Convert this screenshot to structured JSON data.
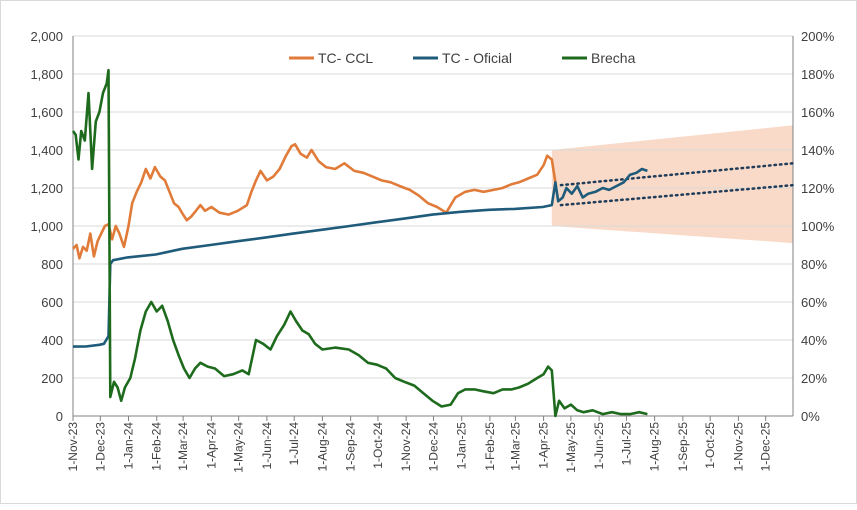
{
  "chart_data": {
    "type": "line",
    "title": "",
    "xlabel": "",
    "ylabel": "",
    "y_left_ticks": [
      "0",
      "200",
      "400",
      "600",
      "800",
      "1,000",
      "1,200",
      "1,400",
      "1,600",
      "1,800",
      "2,000"
    ],
    "y_right_ticks": [
      "0%",
      "20%",
      "40%",
      "60%",
      "80%",
      "100%",
      "120%",
      "140%",
      "160%",
      "180%",
      "200%"
    ],
    "ylim_left": [
      0,
      2000
    ],
    "ylim_right": [
      0,
      200
    ],
    "x_ticks": [
      "1-Nov-23",
      "1-Dec-23",
      "1-Jan-24",
      "1-Feb-24",
      "1-Mar-24",
      "1-Apr-24",
      "1-May-24",
      "1-Jun-24",
      "1-Jul-24",
      "1-Aug-24",
      "1-Sep-24",
      "1-Oct-24",
      "1-Nov-24",
      "1-Dec-24",
      "1-Jan-25",
      "1-Feb-25",
      "1-Mar-25",
      "1-Apr-25",
      "1-May-25",
      "1-Jun-25",
      "1-Jul-25",
      "1-Aug-25",
      "1-Sep-25",
      "1-Oct-25",
      "1-Nov-25",
      "1-Dec-25"
    ],
    "grid": "horizontal",
    "legend_position": "top-center",
    "colors": {
      "ccl": "#e07b39",
      "oficial": "#1f5b7a",
      "brecha": "#1e6b1e",
      "band": "#f8d3be",
      "trend": "#1f3d5a"
    },
    "series": [
      {
        "name": "TC- CCL",
        "axis": "left",
        "points": [
          [
            "2023-11-01",
            880
          ],
          [
            "2023-11-05",
            900
          ],
          [
            "2023-11-08",
            830
          ],
          [
            "2023-11-12",
            890
          ],
          [
            "2023-11-16",
            870
          ],
          [
            "2023-11-20",
            960
          ],
          [
            "2023-11-24",
            840
          ],
          [
            "2023-11-28",
            920
          ],
          [
            "2023-12-02",
            960
          ],
          [
            "2023-12-06",
            1000
          ],
          [
            "2023-12-10",
            1010
          ],
          [
            "2023-12-14",
            930
          ],
          [
            "2023-12-18",
            1000
          ],
          [
            "2023-12-22",
            960
          ],
          [
            "2023-12-27",
            890
          ],
          [
            "2024-01-01",
            1000
          ],
          [
            "2024-01-05",
            1120
          ],
          [
            "2024-01-10",
            1180
          ],
          [
            "2024-01-15",
            1230
          ],
          [
            "2024-01-20",
            1300
          ],
          [
            "2024-01-25",
            1250
          ],
          [
            "2024-01-30",
            1310
          ],
          [
            "2024-02-05",
            1260
          ],
          [
            "2024-02-10",
            1240
          ],
          [
            "2024-02-15",
            1180
          ],
          [
            "2024-02-20",
            1120
          ],
          [
            "2024-02-25",
            1100
          ],
          [
            "2024-03-01",
            1060
          ],
          [
            "2024-03-05",
            1030
          ],
          [
            "2024-03-10",
            1050
          ],
          [
            "2024-03-15",
            1080
          ],
          [
            "2024-03-20",
            1110
          ],
          [
            "2024-03-25",
            1080
          ],
          [
            "2024-04-01",
            1100
          ],
          [
            "2024-04-10",
            1070
          ],
          [
            "2024-04-20",
            1060
          ],
          [
            "2024-04-30",
            1080
          ],
          [
            "2024-05-10",
            1110
          ],
          [
            "2024-05-15",
            1180
          ],
          [
            "2024-05-20",
            1240
          ],
          [
            "2024-05-25",
            1290
          ],
          [
            "2024-06-01",
            1240
          ],
          [
            "2024-06-08",
            1260
          ],
          [
            "2024-06-15",
            1300
          ],
          [
            "2024-06-22",
            1370
          ],
          [
            "2024-06-28",
            1420
          ],
          [
            "2024-07-02",
            1430
          ],
          [
            "2024-07-08",
            1380
          ],
          [
            "2024-07-15",
            1360
          ],
          [
            "2024-07-20",
            1400
          ],
          [
            "2024-07-28",
            1340
          ],
          [
            "2024-08-05",
            1310
          ],
          [
            "2024-08-15",
            1300
          ],
          [
            "2024-08-25",
            1330
          ],
          [
            "2024-09-05",
            1290
          ],
          [
            "2024-09-15",
            1280
          ],
          [
            "2024-09-25",
            1260
          ],
          [
            "2024-10-05",
            1240
          ],
          [
            "2024-10-15",
            1230
          ],
          [
            "2024-10-25",
            1210
          ],
          [
            "2024-11-05",
            1190
          ],
          [
            "2024-11-15",
            1160
          ],
          [
            "2024-11-25",
            1120
          ],
          [
            "2024-12-05",
            1100
          ],
          [
            "2024-12-15",
            1070
          ],
          [
            "2024-12-25",
            1150
          ],
          [
            "2025-01-05",
            1180
          ],
          [
            "2025-01-15",
            1190
          ],
          [
            "2025-01-25",
            1180
          ],
          [
            "2025-02-05",
            1190
          ],
          [
            "2025-02-15",
            1200
          ],
          [
            "2025-02-25",
            1220
          ],
          [
            "2025-03-05",
            1230
          ],
          [
            "2025-03-15",
            1250
          ],
          [
            "2025-03-25",
            1270
          ],
          [
            "2025-04-01",
            1320
          ],
          [
            "2025-04-05",
            1370
          ],
          [
            "2025-04-10",
            1350
          ],
          [
            "2025-04-14",
            1230
          ]
        ]
      },
      {
        "name": "TC - Oficial",
        "axis": "left",
        "points": [
          [
            "2023-11-01",
            365
          ],
          [
            "2023-11-15",
            366
          ],
          [
            "2023-11-30",
            375
          ],
          [
            "2023-12-05",
            380
          ],
          [
            "2023-12-10",
            420
          ],
          [
            "2023-12-12",
            800
          ],
          [
            "2023-12-15",
            820
          ],
          [
            "2023-12-31",
            835
          ],
          [
            "2024-01-31",
            850
          ],
          [
            "2024-02-29",
            880
          ],
          [
            "2024-03-31",
            900
          ],
          [
            "2024-04-30",
            920
          ],
          [
            "2024-05-31",
            940
          ],
          [
            "2024-06-30",
            960
          ],
          [
            "2024-07-31",
            980
          ],
          [
            "2024-08-31",
            1000
          ],
          [
            "2024-09-30",
            1020
          ],
          [
            "2024-10-31",
            1040
          ],
          [
            "2024-11-30",
            1060
          ],
          [
            "2024-12-31",
            1075
          ],
          [
            "2025-01-31",
            1085
          ],
          [
            "2025-02-28",
            1090
          ],
          [
            "2025-03-31",
            1100
          ],
          [
            "2025-04-10",
            1110
          ],
          [
            "2025-04-14",
            1230
          ],
          [
            "2025-04-17",
            1130
          ],
          [
            "2025-04-22",
            1150
          ],
          [
            "2025-04-26",
            1200
          ],
          [
            "2025-05-02",
            1170
          ],
          [
            "2025-05-08",
            1210
          ],
          [
            "2025-05-14",
            1150
          ],
          [
            "2025-05-20",
            1170
          ],
          [
            "2025-05-28",
            1180
          ],
          [
            "2025-06-05",
            1200
          ],
          [
            "2025-06-12",
            1190
          ],
          [
            "2025-06-20",
            1210
          ],
          [
            "2025-06-28",
            1230
          ],
          [
            "2025-07-05",
            1270
          ],
          [
            "2025-07-12",
            1280
          ],
          [
            "2025-07-18",
            1300
          ],
          [
            "2025-07-24",
            1290
          ]
        ]
      },
      {
        "name": "Brecha",
        "axis": "right",
        "points": [
          [
            "2023-11-01",
            150
          ],
          [
            "2023-11-04",
            148
          ],
          [
            "2023-11-07",
            135
          ],
          [
            "2023-11-10",
            150
          ],
          [
            "2023-11-14",
            145
          ],
          [
            "2023-11-18",
            170
          ],
          [
            "2023-11-22",
            130
          ],
          [
            "2023-11-26",
            155
          ],
          [
            "2023-11-30",
            160
          ],
          [
            "2023-12-04",
            170
          ],
          [
            "2023-12-08",
            175
          ],
          [
            "2023-12-10",
            182
          ],
          [
            "2023-12-12",
            10
          ],
          [
            "2023-12-16",
            18
          ],
          [
            "2023-12-20",
            15
          ],
          [
            "2023-12-24",
            8
          ],
          [
            "2023-12-28",
            15
          ],
          [
            "2024-01-03",
            20
          ],
          [
            "2024-01-08",
            30
          ],
          [
            "2024-01-14",
            45
          ],
          [
            "2024-01-20",
            55
          ],
          [
            "2024-01-26",
            60
          ],
          [
            "2024-02-01",
            55
          ],
          [
            "2024-02-07",
            58
          ],
          [
            "2024-02-13",
            50
          ],
          [
            "2024-02-19",
            40
          ],
          [
            "2024-02-25",
            32
          ],
          [
            "2024-03-02",
            25
          ],
          [
            "2024-03-08",
            20
          ],
          [
            "2024-03-14",
            25
          ],
          [
            "2024-03-20",
            28
          ],
          [
            "2024-03-28",
            26
          ],
          [
            "2024-04-05",
            25
          ],
          [
            "2024-04-15",
            21
          ],
          [
            "2024-04-25",
            22
          ],
          [
            "2024-05-05",
            24
          ],
          [
            "2024-05-12",
            22
          ],
          [
            "2024-05-20",
            40
          ],
          [
            "2024-05-28",
            38
          ],
          [
            "2024-06-05",
            35
          ],
          [
            "2024-06-12",
            42
          ],
          [
            "2024-06-20",
            48
          ],
          [
            "2024-06-27",
            55
          ],
          [
            "2024-07-03",
            50
          ],
          [
            "2024-07-10",
            45
          ],
          [
            "2024-07-17",
            43
          ],
          [
            "2024-07-24",
            38
          ],
          [
            "2024-08-01",
            35
          ],
          [
            "2024-08-15",
            36
          ],
          [
            "2024-08-30",
            35
          ],
          [
            "2024-09-10",
            32
          ],
          [
            "2024-09-20",
            28
          ],
          [
            "2024-09-30",
            27
          ],
          [
            "2024-10-10",
            25
          ],
          [
            "2024-10-20",
            20
          ],
          [
            "2024-10-30",
            18
          ],
          [
            "2024-11-10",
            16
          ],
          [
            "2024-11-20",
            12
          ],
          [
            "2024-11-30",
            8
          ],
          [
            "2024-12-10",
            5
          ],
          [
            "2024-12-20",
            6
          ],
          [
            "2024-12-28",
            12
          ],
          [
            "2025-01-05",
            14
          ],
          [
            "2025-01-15",
            14
          ],
          [
            "2025-01-25",
            13
          ],
          [
            "2025-02-05",
            12
          ],
          [
            "2025-02-15",
            14
          ],
          [
            "2025-02-25",
            14
          ],
          [
            "2025-03-05",
            15
          ],
          [
            "2025-03-15",
            17
          ],
          [
            "2025-03-25",
            20
          ],
          [
            "2025-04-01",
            22
          ],
          [
            "2025-04-06",
            26
          ],
          [
            "2025-04-10",
            24
          ],
          [
            "2025-04-14",
            0
          ],
          [
            "2025-04-18",
            8
          ],
          [
            "2025-04-24",
            4
          ],
          [
            "2025-05-01",
            6
          ],
          [
            "2025-05-08",
            3
          ],
          [
            "2025-05-15",
            2
          ],
          [
            "2025-05-25",
            3
          ],
          [
            "2025-06-05",
            1
          ],
          [
            "2025-06-15",
            2
          ],
          [
            "2025-06-25",
            1
          ],
          [
            "2025-07-05",
            1
          ],
          [
            "2025-07-15",
            2
          ],
          [
            "2025-07-24",
            1
          ]
        ]
      }
    ],
    "band": {
      "from": "2025-04-10",
      "to": "2025-12-31",
      "lower_start": 1000,
      "upper_start": 1400,
      "lower_end": 910,
      "upper_end": 1530
    },
    "trendlines": [
      {
        "from": [
          "2025-04-20",
          1215
        ],
        "to": [
          "2025-12-31",
          1330
        ]
      },
      {
        "from": [
          "2025-04-20",
          1110
        ],
        "to": [
          "2025-12-31",
          1215
        ]
      }
    ]
  }
}
